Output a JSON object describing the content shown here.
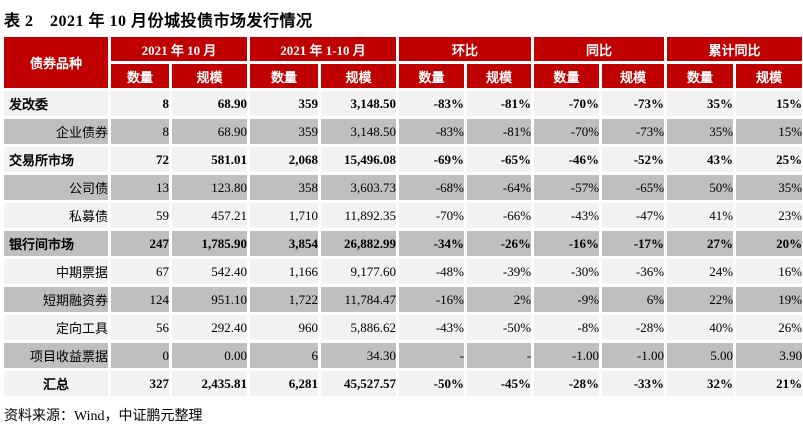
{
  "title": "表 2　2021 年 10 月份城投债市场发行情况",
  "source_note": "资料来源：Wind，中证鹏元整理",
  "colors": {
    "header_red": "#C00000",
    "row_light": "#F2F2F2",
    "row_dark": "#BFBFBF",
    "header_text": "#FFFFFF",
    "body_text": "#000000"
  },
  "table": {
    "corner_header": "债券品种",
    "group_headers": [
      "2021 年 10 月",
      "2021 年 1-10 月",
      "环比",
      "同比",
      "累计同比"
    ],
    "sub_headers": [
      "数量",
      "规模"
    ],
    "rows": [
      {
        "label": "发改委",
        "bold": true,
        "shade": "light",
        "label_align": "left",
        "values": [
          "8",
          "68.90",
          "359",
          "3,148.50",
          "-83%",
          "-81%",
          "-70%",
          "-73%",
          "35%",
          "15%"
        ]
      },
      {
        "label": "企业债券",
        "bold": false,
        "shade": "dark",
        "label_align": "right",
        "values": [
          "8",
          "68.90",
          "359",
          "3,148.50",
          "-83%",
          "-81%",
          "-70%",
          "-73%",
          "35%",
          "15%"
        ]
      },
      {
        "label": "交易所市场",
        "bold": true,
        "shade": "light",
        "label_align": "left",
        "values": [
          "72",
          "581.01",
          "2,068",
          "15,496.08",
          "-69%",
          "-65%",
          "-46%",
          "-52%",
          "43%",
          "25%"
        ]
      },
      {
        "label": "公司债",
        "bold": false,
        "shade": "dark",
        "label_align": "right",
        "values": [
          "13",
          "123.80",
          "358",
          "3,603.73",
          "-68%",
          "-64%",
          "-57%",
          "-65%",
          "50%",
          "35%"
        ]
      },
      {
        "label": "私募债",
        "bold": false,
        "shade": "light",
        "label_align": "right",
        "values": [
          "59",
          "457.21",
          "1,710",
          "11,892.35",
          "-70%",
          "-66%",
          "-43%",
          "-47%",
          "41%",
          "23%"
        ]
      },
      {
        "label": "银行间市场",
        "bold": true,
        "shade": "dark",
        "label_align": "left",
        "values": [
          "247",
          "1,785.90",
          "3,854",
          "26,882.99",
          "-34%",
          "-26%",
          "-16%",
          "-17%",
          "27%",
          "20%"
        ]
      },
      {
        "label": "中期票据",
        "bold": false,
        "shade": "light",
        "label_align": "right",
        "values": [
          "67",
          "542.40",
          "1,166",
          "9,177.60",
          "-48%",
          "-39%",
          "-30%",
          "-36%",
          "24%",
          "16%"
        ]
      },
      {
        "label": "短期融资券",
        "bold": false,
        "shade": "dark",
        "label_align": "right",
        "values": [
          "124",
          "951.10",
          "1,722",
          "11,784.47",
          "-16%",
          "2%",
          "-9%",
          "6%",
          "22%",
          "19%"
        ]
      },
      {
        "label": "定向工具",
        "bold": false,
        "shade": "light",
        "label_align": "right",
        "values": [
          "56",
          "292.40",
          "960",
          "5,886.62",
          "-43%",
          "-50%",
          "-8%",
          "-28%",
          "40%",
          "26%"
        ]
      },
      {
        "label": "项目收益票据",
        "bold": false,
        "shade": "dark",
        "label_align": "right",
        "values": [
          "0",
          "0.00",
          "6",
          "34.30",
          "-",
          "-",
          "-1.00",
          "-1.00",
          "5.00",
          "3.90"
        ]
      },
      {
        "label": "汇总",
        "bold": true,
        "shade": "light",
        "label_align": "center",
        "values": [
          "327",
          "2,435.81",
          "6,281",
          "45,527.57",
          "-50%",
          "-45%",
          "-28%",
          "-33%",
          "32%",
          "21%"
        ]
      }
    ]
  }
}
